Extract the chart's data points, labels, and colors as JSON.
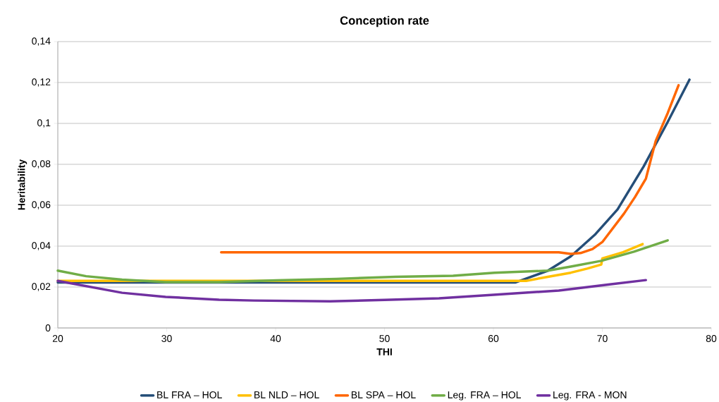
{
  "chart_data": {
    "type": "line",
    "title": "Conception rate",
    "xlabel": "THI",
    "ylabel": "Heritability",
    "xlim": [
      20,
      80
    ],
    "xticks": [
      20,
      30,
      40,
      50,
      60,
      70,
      80
    ],
    "ylim": [
      0,
      0.14
    ],
    "yticks": [
      0,
      {
        "value": 0.02,
        "label": "0,02"
      },
      {
        "value": 0.04,
        "label": "0,04"
      },
      {
        "value": 0.06,
        "label": "0,06"
      },
      {
        "value": 0.08,
        "label": "0,08"
      },
      {
        "value": 0.1,
        "label": "0,1"
      },
      {
        "value": 0.12,
        "label": "0,12"
      },
      {
        "value": 0.14,
        "label": "0,14"
      }
    ],
    "grid": "y",
    "legend": "bottom",
    "marker": "none",
    "line_style": "solid",
    "series": [
      {
        "name": "BL FRA – HOL",
        "color": "#254e78",
        "x": [
          20,
          30,
          40,
          50,
          62,
          65,
          67.1,
          69.3,
          71.4,
          73.8,
          76,
          78
        ],
        "values": [
          0.0222,
          0.0222,
          0.0222,
          0.0222,
          0.0222,
          0.028,
          0.035,
          0.0455,
          0.058,
          0.079,
          0.1007,
          0.1214
        ]
      },
      {
        "name": "BL NLD – HOL",
        "color": "#ffc000",
        "x": [
          20,
          30,
          40,
          50,
          63,
          65,
          67.1,
          68.6,
          69.9,
          70,
          71.9,
          73.7
        ],
        "values": [
          0.023,
          0.023,
          0.023,
          0.023,
          0.023,
          0.025,
          0.027,
          0.029,
          0.031,
          0.034,
          0.037,
          0.041
        ]
      },
      {
        "name": "BL SPA – HOL",
        "color": "#ff6600",
        "x": [
          35,
          45,
          55,
          66,
          67.1,
          68,
          69.1,
          70,
          71,
          72,
          73,
          74,
          74.9,
          76,
          77
        ],
        "values": [
          0.037,
          0.037,
          0.037,
          0.037,
          0.0362,
          0.0366,
          0.0386,
          0.042,
          0.049,
          0.056,
          0.064,
          0.073,
          0.0914,
          0.105,
          0.1187
        ]
      },
      {
        "name": "Leg. FRA – HOL",
        "color": "#70ad47",
        "x": [
          20,
          22.6,
          25.9,
          29.9,
          34.8,
          40.1,
          45.6,
          51,
          56.3,
          60.1,
          65,
          67.1,
          69.9,
          72.9,
          76
        ],
        "values": [
          0.028,
          0.0253,
          0.0236,
          0.0224,
          0.0224,
          0.0233,
          0.024,
          0.025,
          0.0255,
          0.027,
          0.028,
          0.03,
          0.0328,
          0.0373,
          0.0428
        ]
      },
      {
        "name": "Leg. FRA - MON",
        "color": "#7030a0",
        "x": [
          20,
          25.9,
          29.9,
          34.8,
          38,
          45,
          50,
          55,
          60,
          66,
          70.8,
          74
        ],
        "values": [
          0.023,
          0.0172,
          0.0152,
          0.0138,
          0.0134,
          0.013,
          0.0137,
          0.0145,
          0.0162,
          0.0183,
          0.0214,
          0.0234
        ]
      }
    ]
  }
}
